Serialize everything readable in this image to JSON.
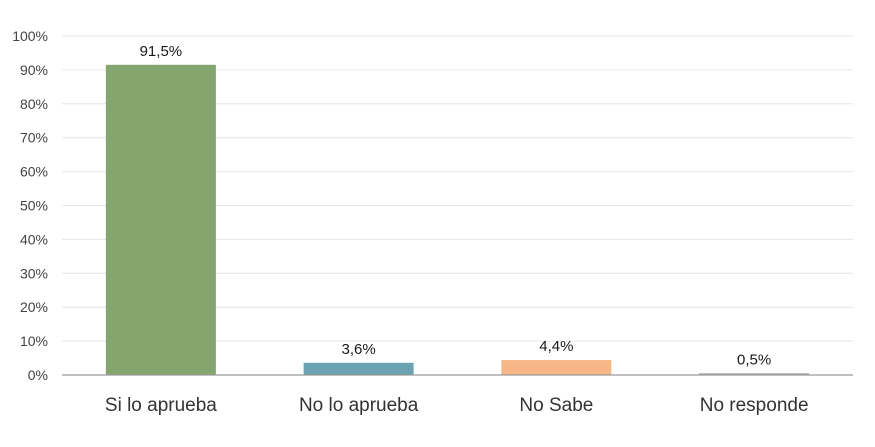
{
  "chart_data": {
    "type": "bar",
    "title": "",
    "xlabel": "",
    "ylabel": "",
    "ylim": [
      0,
      100
    ],
    "yticks": [
      "0%",
      "10%",
      "20%",
      "30%",
      "40%",
      "50%",
      "60%",
      "70%",
      "80%",
      "90%",
      "100%"
    ],
    "ytick_values": [
      0,
      10,
      20,
      30,
      40,
      50,
      60,
      70,
      80,
      90,
      100
    ],
    "grid": true,
    "categories": [
      "Si lo aprueba",
      "No lo aprueba",
      "No Sabe",
      "No responde"
    ],
    "values": [
      91.5,
      3.6,
      4.4,
      0.5
    ],
    "data_labels": [
      "91,5%",
      "3,6%",
      "4,4%",
      "0,5%"
    ],
    "colors": [
      "#84a66e",
      "#6ca3b3",
      "#f6b686",
      "#a3a3a3"
    ]
  }
}
